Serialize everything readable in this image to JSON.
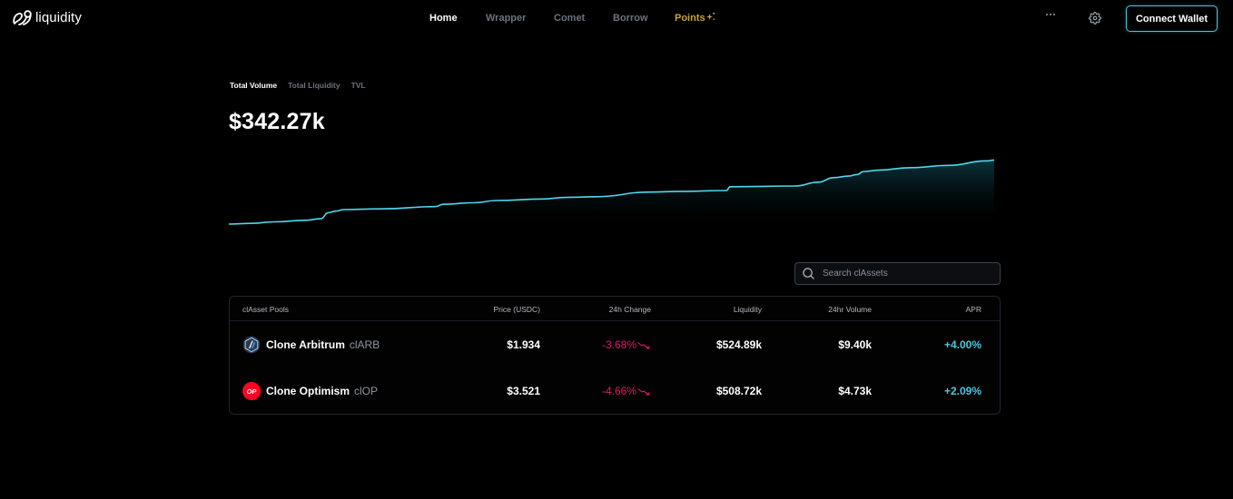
{
  "header": {
    "logo_text": "liquidity",
    "nav": [
      {
        "label": "Home",
        "active": true
      },
      {
        "label": "Wrapper",
        "active": false
      },
      {
        "label": "Comet",
        "active": false
      },
      {
        "label": "Borrow",
        "active": false
      },
      {
        "label": "Points",
        "active": false,
        "badge_icon": "sparkle-icon"
      }
    ],
    "more_icon": "ellipsis-icon",
    "settings_icon": "gear-icon",
    "connect_wallet_label": "Connect Wallet"
  },
  "overview": {
    "tabs": [
      {
        "label": "Total Volume",
        "active": true
      },
      {
        "label": "Total Liquidity",
        "active": false
      },
      {
        "label": "TVL",
        "active": false
      }
    ],
    "value": "$342.27k"
  },
  "chart_data": {
    "type": "area",
    "title": "Total Volume",
    "xlabel": "",
    "ylabel": "",
    "grid": false,
    "legend": null,
    "line_color": "#4fd8ec",
    "note": "Relative cumulative volume trend, no axes shown; values are normalized 0-100 (screen-traced).",
    "x": [
      0,
      3,
      6,
      10,
      12,
      13,
      14,
      15,
      20,
      27,
      28,
      32,
      35,
      41,
      44,
      48,
      55,
      59,
      65,
      65.5,
      74,
      77,
      79,
      81,
      82,
      83,
      85,
      89,
      94,
      99,
      100
    ],
    "values": [
      0,
      1,
      3,
      5,
      7,
      15,
      17,
      19,
      20,
      23,
      26,
      28,
      31,
      33,
      35,
      36,
      42,
      43,
      44,
      49,
      50,
      55,
      61,
      63,
      65,
      69,
      71,
      74,
      77,
      83,
      84
    ]
  },
  "search": {
    "placeholder": "Search clAssets",
    "value": ""
  },
  "table": {
    "columns": [
      "clAsset Pools",
      "Price (USDC)",
      "24h Change",
      "Liquidity",
      "24hr Volume",
      "APR"
    ],
    "rows": [
      {
        "icon": "arbitrum-logo-icon",
        "name": "Clone Arbitrum",
        "symbol": "clARB",
        "price": "$1.934",
        "change": "-3.68%",
        "liquidity": "$524.89k",
        "volume": "$9.40k",
        "apr": "+4.00%"
      },
      {
        "icon": "optimism-logo-icon",
        "icon_text": "OP",
        "name": "Clone Optimism",
        "symbol": "clOP",
        "price": "$3.521",
        "change": "-4.66%",
        "liquidity": "$508.72k",
        "volume": "$4.73k",
        "apr": "+2.09%"
      }
    ]
  },
  "colors": {
    "accent": "#4fc6dc",
    "negative": "#e0186c",
    "points": "#c9a43a",
    "background": "#000000"
  }
}
